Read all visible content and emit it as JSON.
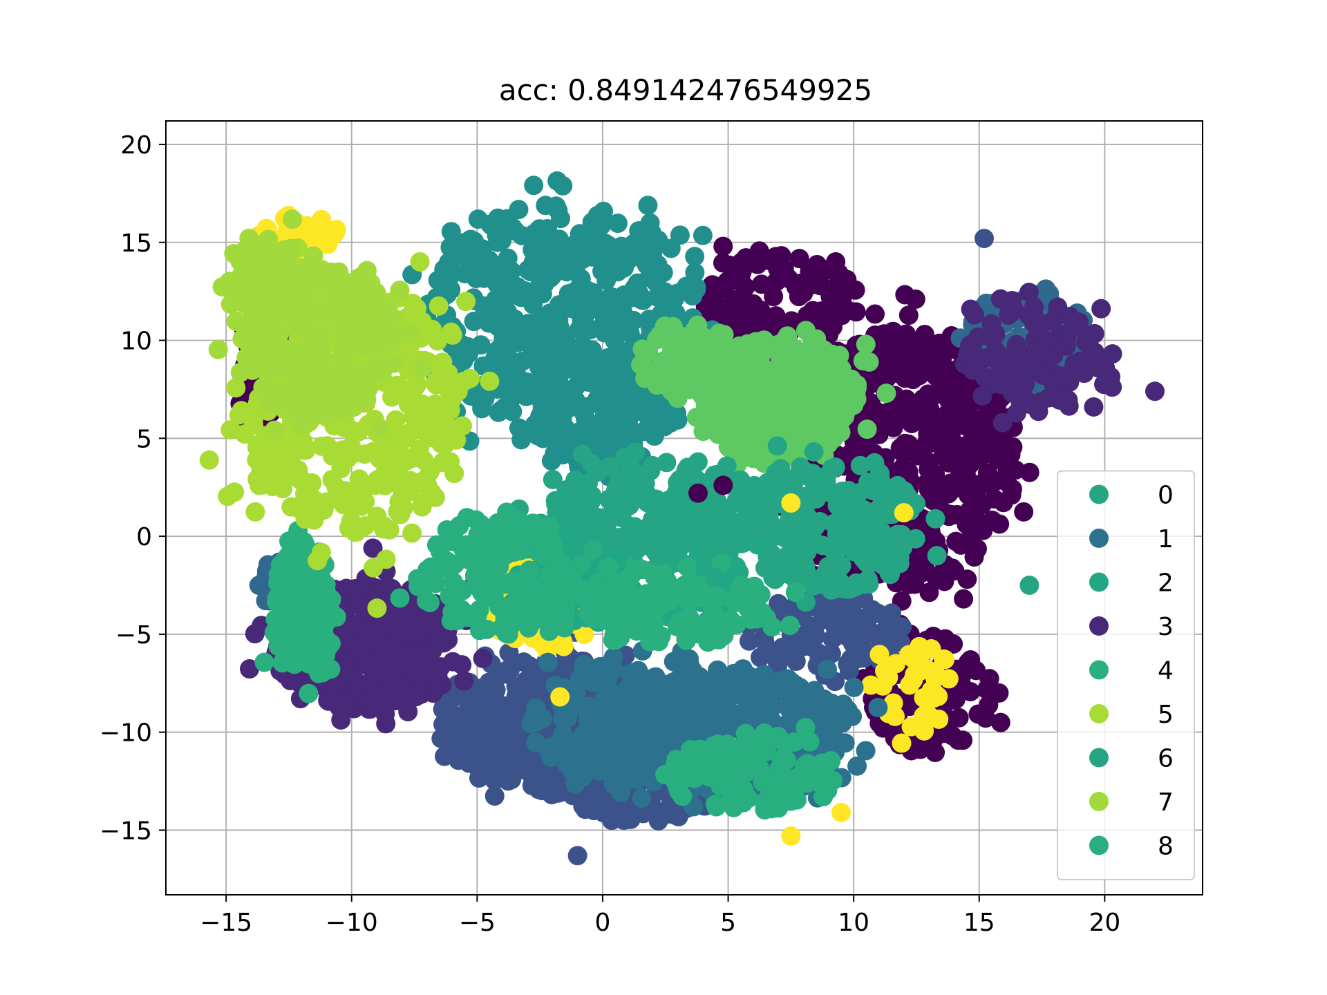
{
  "chart_data": {
    "type": "scatter",
    "title": "acc: 0.849142476549925",
    "xlabel": "",
    "ylabel": "",
    "xlim": [
      -17.4,
      23.9
    ],
    "ylim": [
      -18.3,
      21.2
    ],
    "xticks": [
      -15,
      -10,
      -5,
      0,
      5,
      10,
      15,
      20
    ],
    "yticks": [
      20,
      15,
      10,
      5,
      0,
      -5,
      -10,
      -15
    ],
    "xtick_labels": [
      "−15",
      "−10",
      "−5",
      "0",
      "5",
      "10",
      "15",
      "20"
    ],
    "ytick_labels": [
      "20",
      "15",
      "10",
      "5",
      "0",
      "−5",
      "−10",
      "−15"
    ],
    "grid": true,
    "legend_position": "lower right",
    "series": [
      {
        "name": "0",
        "color": "#26a584",
        "clusters": [
          [
            9.0,
            0.5,
            3.6,
            3.4,
            220
          ]
        ]
      },
      {
        "name": "1",
        "color": "#2c728e",
        "clusters": [
          [
            4.5,
            -10.0,
            5.2,
            3.2,
            420
          ],
          [
            0.5,
            -9.5,
            3.5,
            3.0,
            150
          ]
        ]
      },
      {
        "name": "2",
        "color": "#22a785",
        "clusters": [
          [
            1.0,
            -2.0,
            4.5,
            2.6,
            220
          ]
        ]
      },
      {
        "name": "3",
        "color": "#482878",
        "clusters": [
          [
            -9.5,
            -5.5,
            3.6,
            3.4,
            420
          ],
          [
            17.5,
            9.0,
            3.0,
            3.0,
            110
          ]
        ]
      },
      {
        "name": "4",
        "color": "#2ab07f",
        "clusters": [
          [
            -12.0,
            -4.0,
            1.2,
            4.0,
            120
          ],
          [
            3.0,
            -3.5,
            4.0,
            2.0,
            120
          ]
        ]
      },
      {
        "name": "5",
        "color": "#a8db34",
        "clusters": [
          [
            -10.0,
            6.5,
            4.4,
            6.5,
            380
          ]
        ]
      },
      {
        "name": "6",
        "color": "#25a584",
        "clusters": [
          [
            2.5,
            1.5,
            4.5,
            2.5,
            160
          ]
        ]
      },
      {
        "name": "7",
        "color": "#a2d93c",
        "clusters": [
          [
            -11.5,
            10.0,
            3.2,
            4.0,
            260
          ],
          [
            -13.5,
            13.5,
            1.5,
            1.5,
            60
          ]
        ]
      },
      {
        "name": "8",
        "color": "#29af7f",
        "clusters": [
          [
            -4.0,
            -2.0,
            3.5,
            3.0,
            180
          ],
          [
            6.0,
            -12.0,
            3.5,
            2.0,
            120
          ]
        ]
      }
    ],
    "background_series": [
      {
        "color": "#440154",
        "clusters": [
          [
            12.0,
            4.0,
            4.5,
            6.5,
            520
          ],
          [
            7.0,
            12.0,
            3.0,
            2.5,
            120
          ],
          [
            13.0,
            -8.0,
            2.5,
            3.0,
            100
          ],
          [
            -13.5,
            10.0,
            1.0,
            4.0,
            80
          ]
        ]
      },
      {
        "color": "#21908d",
        "clusters": [
          [
            -1.5,
            11.0,
            5.5,
            6.0,
            480
          ],
          [
            0.0,
            6.0,
            3.0,
            3.0,
            120
          ]
        ]
      },
      {
        "color": "#5ec962",
        "clusters": [
          [
            7.0,
            7.0,
            3.2,
            3.2,
            320
          ],
          [
            3.5,
            9.0,
            2.0,
            2.0,
            80
          ]
        ]
      },
      {
        "color": "#3b528b",
        "clusters": [
          [
            -2.0,
            -9.5,
            4.5,
            3.5,
            420
          ],
          [
            1.5,
            -13.0,
            3.0,
            1.5,
            140
          ],
          [
            9.0,
            -5.0,
            3.0,
            2.0,
            100
          ]
        ]
      },
      {
        "color": "#fde725",
        "clusters": [
          [
            -2.5,
            -3.0,
            2.2,
            2.5,
            160
          ],
          [
            12.5,
            -7.5,
            1.5,
            2.5,
            40
          ],
          [
            -12.0,
            15.5,
            1.5,
            1.0,
            30
          ]
        ]
      },
      {
        "color": "#31688e",
        "clusters": [
          [
            17.0,
            10.0,
            2.5,
            2.5,
            120
          ],
          [
            -13.0,
            -2.5,
            0.8,
            1.0,
            30
          ]
        ]
      }
    ],
    "single_points": [
      {
        "x": 12.0,
        "y": 1.2,
        "color": "#fde725"
      },
      {
        "x": 7.5,
        "y": 1.7,
        "color": "#fde725"
      },
      {
        "x": 11.3,
        "y": 7.3,
        "color": "#5ec962"
      },
      {
        "x": -1.0,
        "y": -16.3,
        "color": "#3b528b"
      },
      {
        "x": -1.7,
        "y": -8.2,
        "color": "#fde725"
      },
      {
        "x": 7.5,
        "y": -15.3,
        "color": "#fde725"
      },
      {
        "x": 9.5,
        "y": -14.1,
        "color": "#fde725"
      },
      {
        "x": 4.8,
        "y": 2.6,
        "color": "#440154"
      },
      {
        "x": 3.8,
        "y": 2.2,
        "color": "#440154"
      },
      {
        "x": 17.0,
        "y": -2.5,
        "color": "#26a584"
      },
      {
        "x": 22.0,
        "y": 7.4,
        "color": "#482878"
      },
      {
        "x": 15.2,
        "y": 15.2,
        "color": "#3b528b"
      }
    ]
  }
}
